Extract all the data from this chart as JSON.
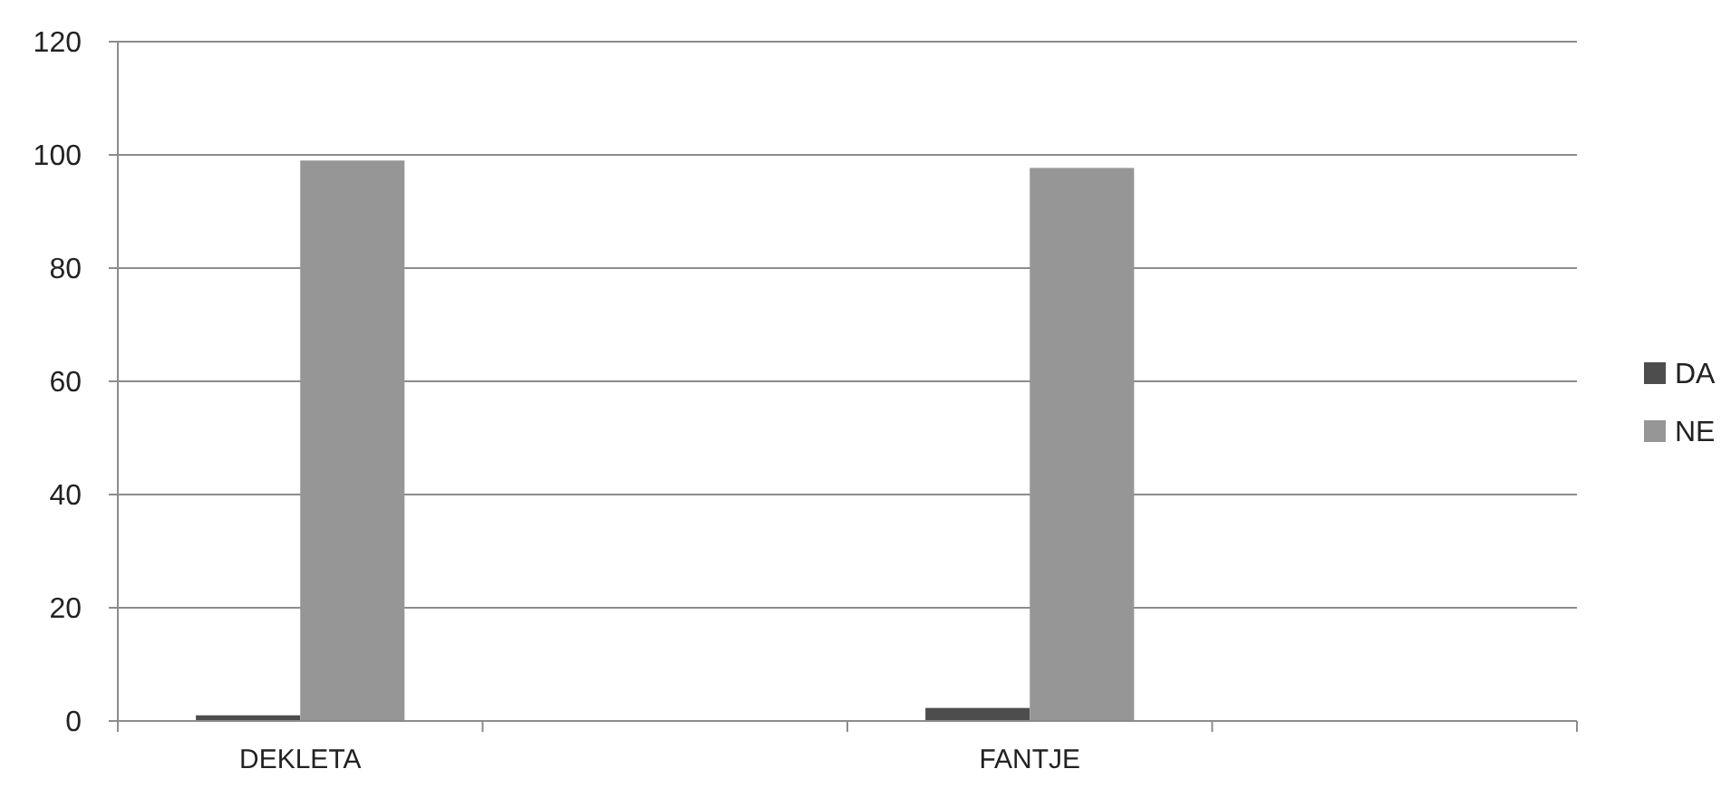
{
  "chart_data": {
    "type": "bar",
    "categories": [
      "DEKLETA",
      null,
      "FANTJE",
      null
    ],
    "series": [
      {
        "name": "DA",
        "color": "#4d4d4d",
        "values": [
          1,
          null,
          2.3,
          null
        ]
      },
      {
        "name": "NE",
        "color": "#969696",
        "values": [
          99,
          null,
          97.7,
          null
        ]
      }
    ],
    "ylim": [
      0,
      120
    ],
    "yticks": [
      0,
      20,
      40,
      60,
      80,
      100,
      120
    ],
    "grid": "y",
    "legend": "right"
  }
}
